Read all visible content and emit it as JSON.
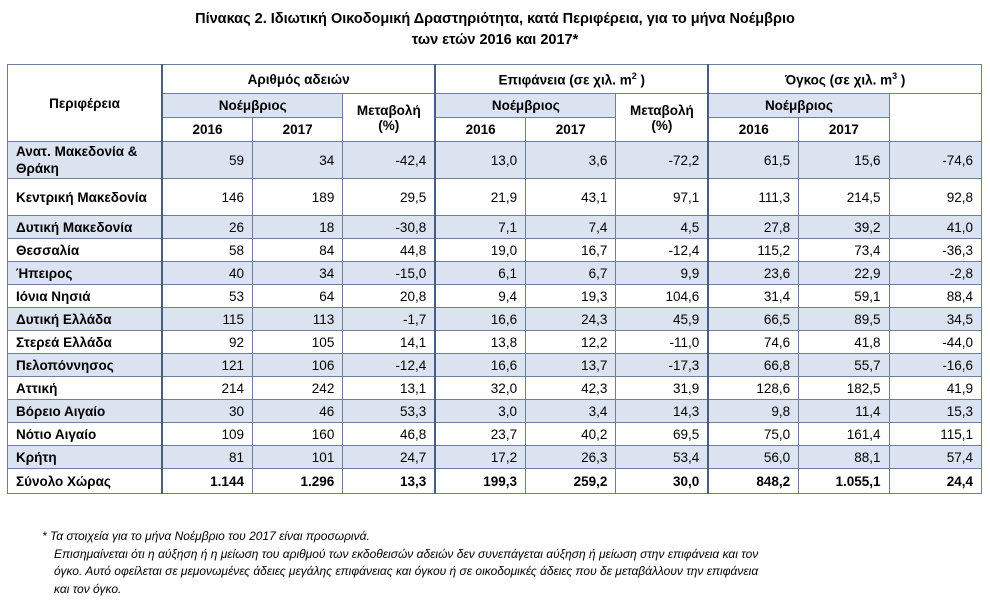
{
  "title": {
    "line1": "Πίνακας 2.  Ιδιωτική  Οικοδομική  Δραστηριότητα,  κατά  Περιφέρεια, για το μήνα Νοέμβριο",
    "line2": "των ετών 2016 και 2017*"
  },
  "header": {
    "region": "Περιφέρεια",
    "permits": "Αριθμός αδειών",
    "area": "Επιφάνεια (σε χιλ. m",
    "area_sup": "2",
    "area_end": " )",
    "volume": "Όγκος (σε χιλ. m",
    "volume_sup": "3",
    "volume_end": " )",
    "month": "Νοέμβριος",
    "change_line1": "Μεταβολή",
    "change_line2": "(%)",
    "year1": "2016",
    "year2": "2017"
  },
  "rows": [
    {
      "region": "Ανατ. Μακεδονία & Θράκη",
      "p16": "59",
      "p17": "34",
      "pch": "-42,4",
      "a16": "13,0",
      "a17": "3,6",
      "ach": "-72,2",
      "v16": "61,5",
      "v17": "15,6",
      "vch": "-74,6"
    },
    {
      "region": "Κεντρική Μακεδονία",
      "p16": "146",
      "p17": "189",
      "pch": "29,5",
      "a16": "21,9",
      "a17": "43,1",
      "ach": "97,1",
      "v16": "111,3",
      "v17": "214,5",
      "vch": "92,8"
    },
    {
      "region": "Δυτική Μακεδονία",
      "p16": "26",
      "p17": "18",
      "pch": "-30,8",
      "a16": "7,1",
      "a17": "7,4",
      "ach": "4,5",
      "v16": "27,8",
      "v17": "39,2",
      "vch": "41,0"
    },
    {
      "region": "Θεσσαλία",
      "p16": "58",
      "p17": "84",
      "pch": "44,8",
      "a16": "19,0",
      "a17": "16,7",
      "ach": "-12,4",
      "v16": "115,2",
      "v17": "73,4",
      "vch": "-36,3"
    },
    {
      "region": "Ήπειρος",
      "p16": "40",
      "p17": "34",
      "pch": "-15,0",
      "a16": "6,1",
      "a17": "6,7",
      "ach": "9,9",
      "v16": "23,6",
      "v17": "22,9",
      "vch": "-2,8"
    },
    {
      "region": "Ιόνια Νησιά",
      "p16": "53",
      "p17": "64",
      "pch": "20,8",
      "a16": "9,4",
      "a17": "19,3",
      "ach": "104,6",
      "v16": "31,4",
      "v17": "59,1",
      "vch": "88,4"
    },
    {
      "region": "Δυτική Ελλάδα",
      "p16": "115",
      "p17": "113",
      "pch": "-1,7",
      "a16": "16,6",
      "a17": "24,3",
      "ach": "45,9",
      "v16": "66,5",
      "v17": "89,5",
      "vch": "34,5"
    },
    {
      "region": "Στερεά Ελλάδα",
      "p16": "92",
      "p17": "105",
      "pch": "14,1",
      "a16": "13,8",
      "a17": "12,2",
      "ach": "-11,0",
      "v16": "74,6",
      "v17": "41,8",
      "vch": "-44,0"
    },
    {
      "region": "Πελοπόννησος",
      "p16": "121",
      "p17": "106",
      "pch": "-12,4",
      "a16": "16,6",
      "a17": "13,7",
      "ach": "-17,3",
      "v16": "66,8",
      "v17": "55,7",
      "vch": "-16,6"
    },
    {
      "region": "Αττική",
      "p16": "214",
      "p17": "242",
      "pch": "13,1",
      "a16": "32,0",
      "a17": "42,3",
      "ach": "31,9",
      "v16": "128,6",
      "v17": "182,5",
      "vch": "41,9"
    },
    {
      "region": "Βόρειο Αιγαίο",
      "p16": "30",
      "p17": "46",
      "pch": "53,3",
      "a16": "3,0",
      "a17": "3,4",
      "ach": "14,3",
      "v16": "9,8",
      "v17": "11,4",
      "vch": "15,3"
    },
    {
      "region": "Νότιο Αιγαίο",
      "p16": "109",
      "p17": "160",
      "pch": "46,8",
      "a16": "23,7",
      "a17": "40,2",
      "ach": "69,5",
      "v16": "75,0",
      "v17": "161,4",
      "vch": "115,1"
    },
    {
      "region": "Κρήτη",
      "p16": "81",
      "p17": "101",
      "pch": "24,7",
      "a16": "17,2",
      "a17": "26,3",
      "ach": "53,4",
      "v16": "56,0",
      "v17": "88,1",
      "vch": "57,4"
    }
  ],
  "total": {
    "region": "Σύνολο Χώρας",
    "p16": "1.144",
    "p17": "1.296",
    "pch": "13,3",
    "a16": "199,3",
    "a17": "259,2",
    "ach": "30,0",
    "v16": "848,2",
    "v17": "1.055,1",
    "vch": "24,4"
  },
  "notes": {
    "line1": "* Τα στοιχεία για το μήνα Νοέμβριο  του 2017 είναι προσωρινά.",
    "line2": "Επισημαίνεται ότι η αύξηση ή η μείωση του αριθμού των εκδοθεισών αδειών δεν συνεπάγεται αύξηση ή  μείωση στην επιφάνεια και τον",
    "line3": "όγκο. Αυτό οφείλεται σε μεμονωμένες άδειες μεγάλης επιφάνειας και όγκου ή σε οικοδομικές άδειες που δε μεταβάλλουν την επιφάνεια",
    "line4": "και τον όγκο."
  }
}
